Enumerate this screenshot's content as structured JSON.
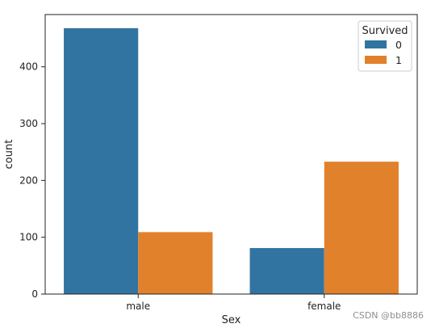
{
  "chart_data": {
    "type": "bar",
    "categories": [
      "male",
      "female"
    ],
    "series": [
      {
        "name": "0",
        "values": [
          468,
          81
        ],
        "color": "#3274a1"
      },
      {
        "name": "1",
        "values": [
          109,
          233
        ],
        "color": "#e1812c"
      }
    ],
    "title": "",
    "xlabel": "Sex",
    "ylabel": "count",
    "ylim": [
      0,
      492
    ],
    "yticks": [
      0,
      100,
      200,
      300,
      400
    ],
    "legend": {
      "title": "Survived",
      "placement": "top-right"
    },
    "grid": false
  },
  "watermark": "CSDN @bb8886"
}
